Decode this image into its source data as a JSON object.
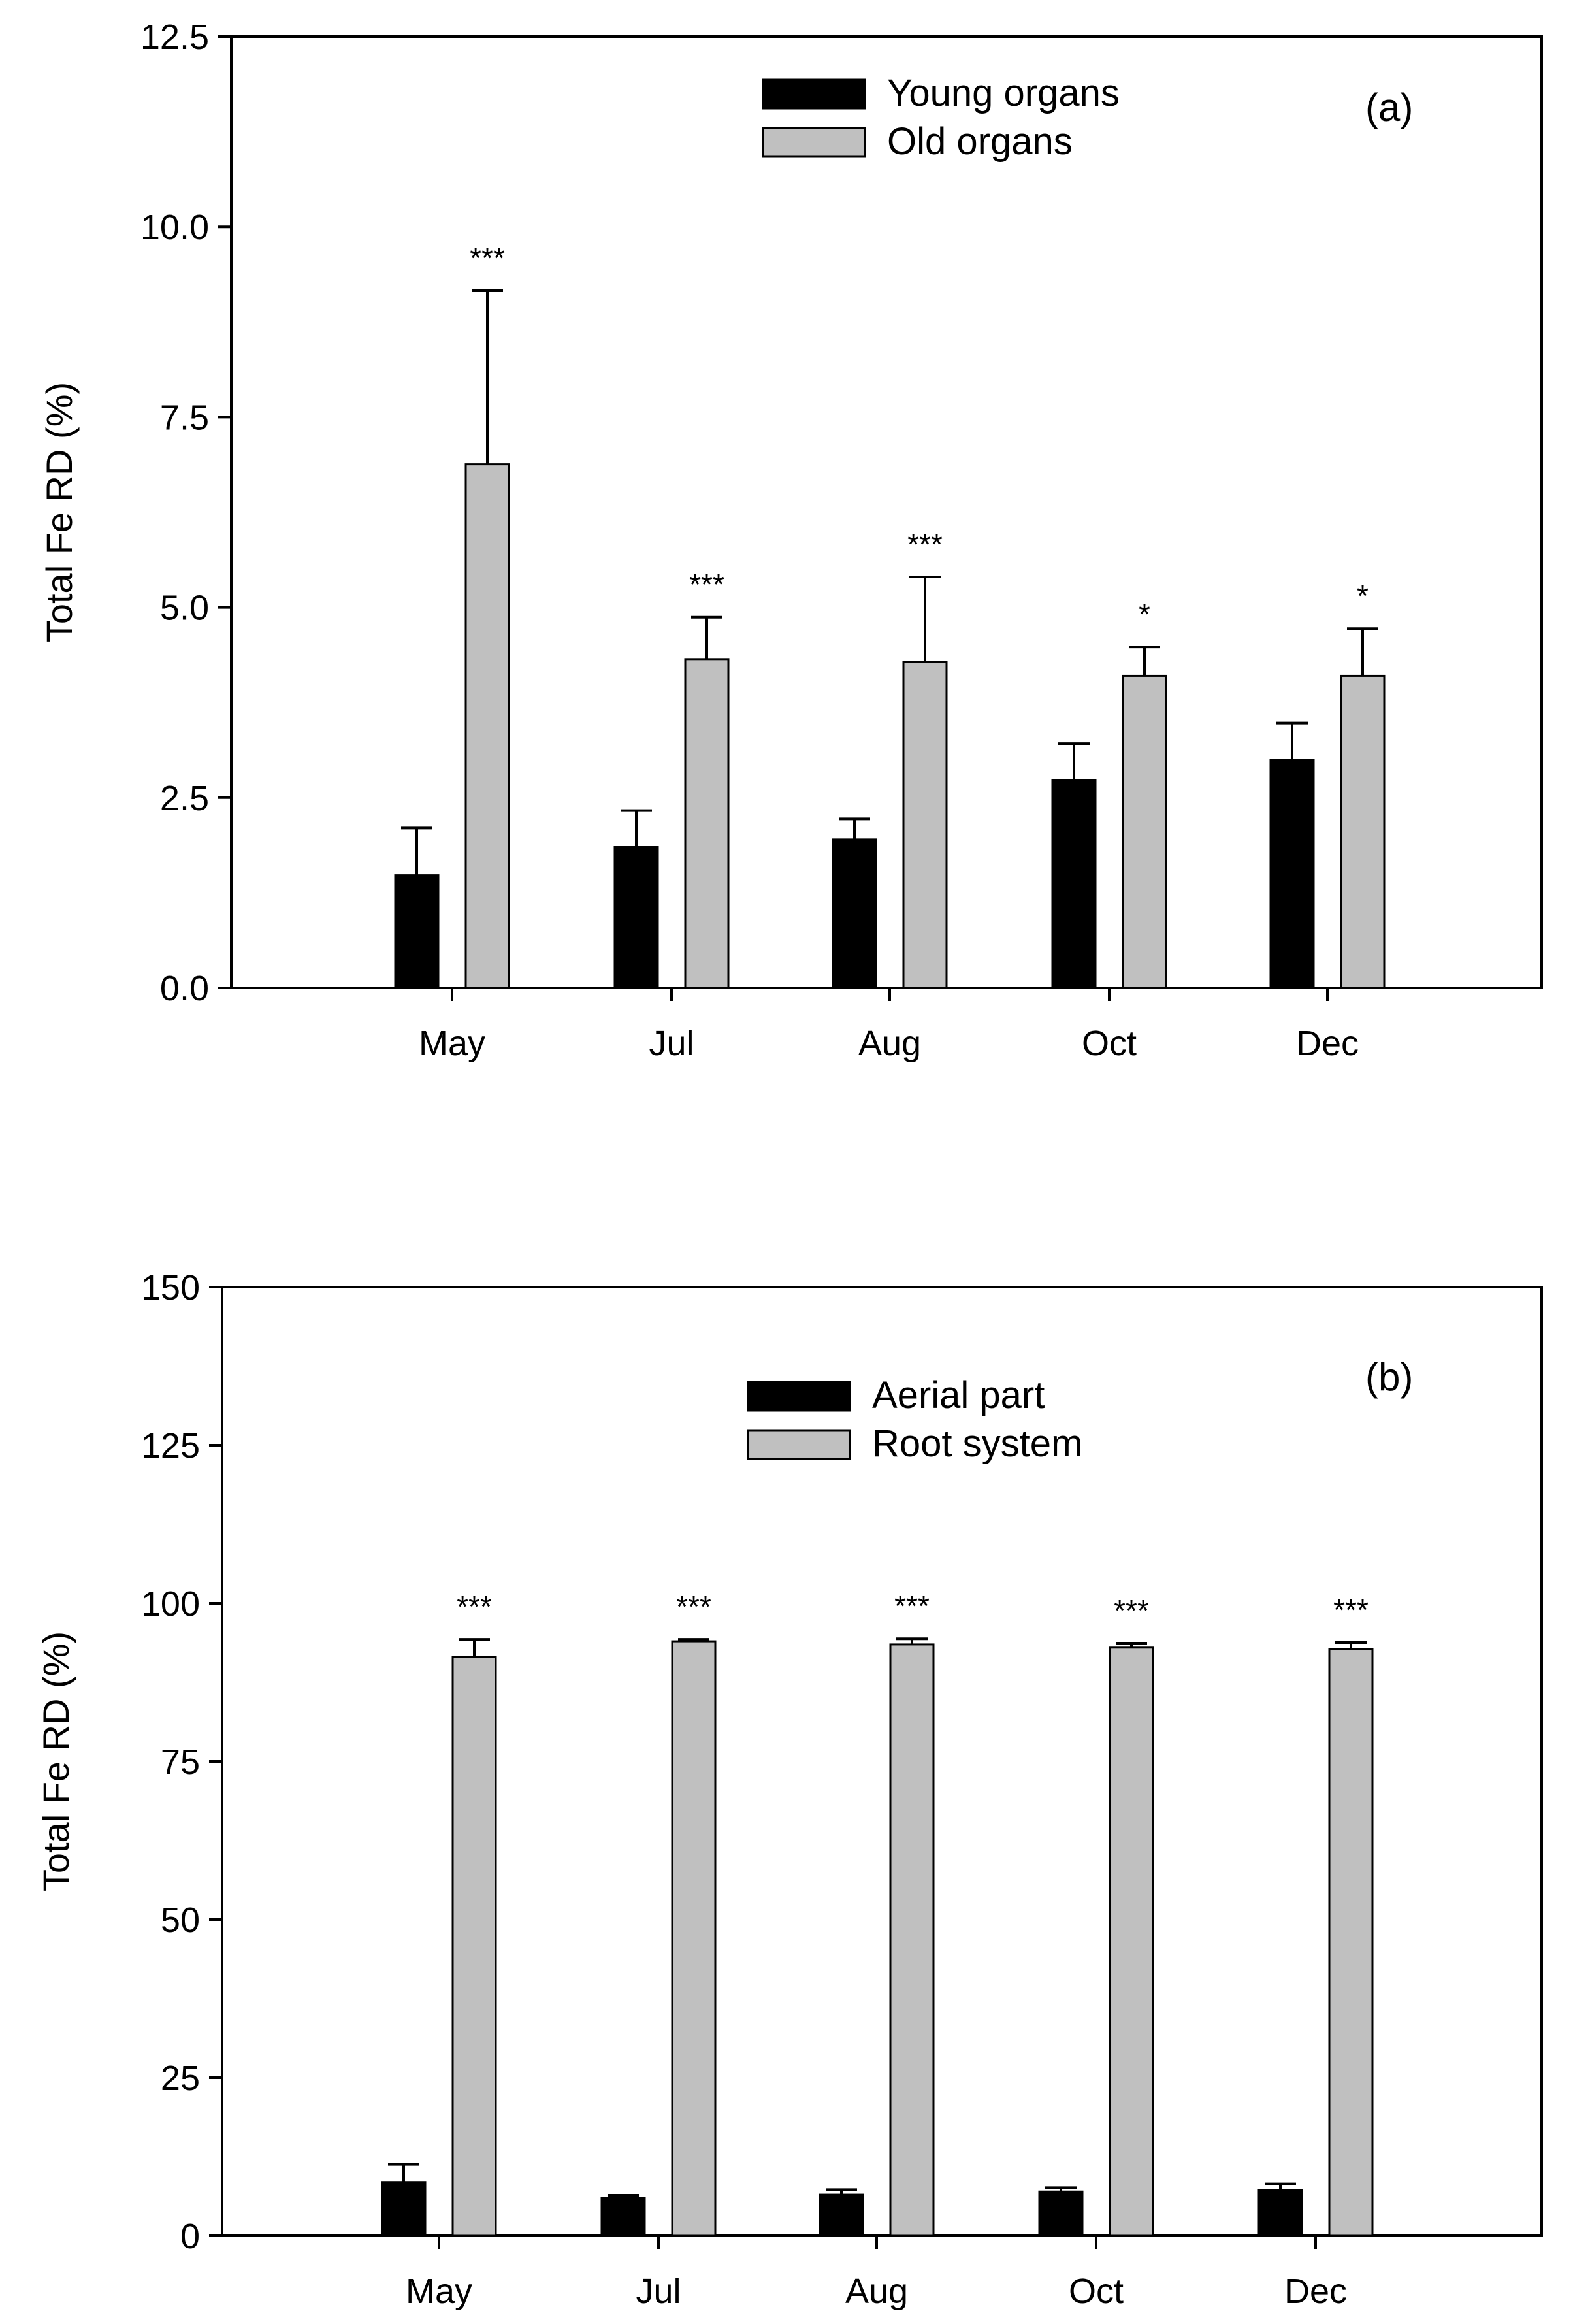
{
  "colors": {
    "series_dark": "#000000",
    "series_light": "#c0c0c0"
  },
  "chart_data": [
    {
      "type": "bar",
      "panel_label": "(a)",
      "ylabel": "Total Fe RD (%)",
      "xlabel": "",
      "categories": [
        "May",
        "Jul",
        "Aug",
        "Oct",
        "Dec"
      ],
      "ylim": [
        0,
        12.5
      ],
      "yticks": [
        0,
        2.5,
        5,
        7.5,
        10,
        12.5
      ],
      "ytick_labels": [
        "0.0",
        "2.5",
        "5.0",
        "7.5",
        "10.0",
        "12.5"
      ],
      "legend_position": "top-center",
      "series": [
        {
          "name": "Young organs",
          "color": "#000000",
          "values": [
            1.48,
            1.85,
            1.95,
            2.73,
            3.0
          ],
          "errors": [
            0.62,
            0.48,
            0.27,
            0.48,
            0.48
          ]
        },
        {
          "name": "Old organs",
          "color": "#c0c0c0",
          "values": [
            6.88,
            4.32,
            4.28,
            4.1,
            4.1
          ],
          "errors": [
            2.28,
            0.55,
            1.12,
            0.38,
            0.62
          ]
        }
      ],
      "significance": [
        "***",
        "***",
        "***",
        "*",
        "*"
      ]
    },
    {
      "type": "bar",
      "panel_label": "(b)",
      "ylabel": "Total Fe RD (%)",
      "xlabel": "",
      "categories": [
        "May",
        "Jul",
        "Aug",
        "Oct",
        "Dec"
      ],
      "ylim": [
        0,
        150
      ],
      "yticks": [
        0,
        25,
        50,
        75,
        100,
        125,
        150
      ],
      "ytick_labels": [
        "0",
        "25",
        "50",
        "75",
        "100",
        "125",
        "150"
      ],
      "legend_position": "top-center",
      "series": [
        {
          "name": "Aerial part",
          "color": "#000000",
          "values": [
            8.5,
            6.0,
            6.5,
            7.0,
            7.2
          ],
          "errors": [
            2.8,
            0.4,
            0.8,
            0.6,
            1.0
          ]
        },
        {
          "name": "Root system",
          "color": "#c0c0c0",
          "values": [
            91.5,
            94.0,
            93.5,
            93.0,
            92.8
          ],
          "errors": [
            2.8,
            0.3,
            0.9,
            0.7,
            1.0
          ]
        }
      ],
      "significance": [
        "***",
        "***",
        "***",
        "***",
        "***"
      ]
    }
  ]
}
